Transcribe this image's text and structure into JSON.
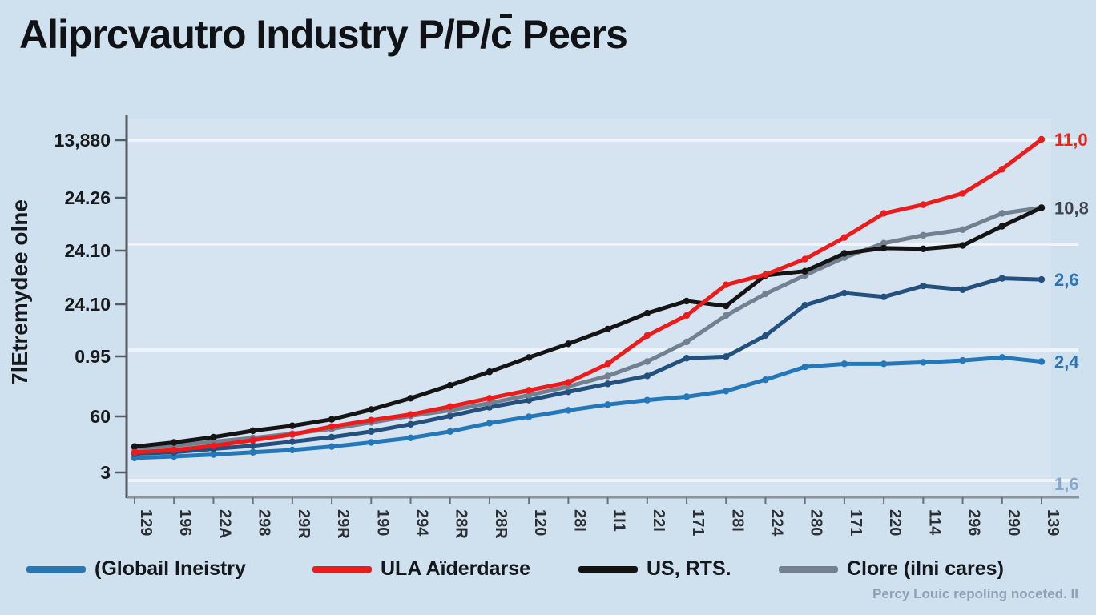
{
  "title": "Aliprcvautro Industry P/P/c̄ Peers",
  "chart_data": {
    "type": "line",
    "title": "Aliprcvautro Industry P/P/c̄ Peers",
    "ylabel": "7lEtremydee olne",
    "xlabel": "",
    "grid": "horizontal-white",
    "legend_position": "bottom",
    "y_tick_labels": [
      "13,880",
      "24.26",
      "24.10",
      "24.10",
      "0.95",
      "60",
      "3"
    ],
    "x_tick_labels": [
      "129",
      "196",
      "22A",
      "298",
      "29R",
      "29R",
      "190",
      "294",
      "28R",
      "28R",
      "120",
      "28I",
      "1I1",
      "22I",
      "171",
      "28I",
      "224",
      "280",
      "171",
      "220",
      "114",
      "296",
      "290",
      "139"
    ],
    "value_note": "Printed axis labels are garbled; series values below are approximate, normalized to 0-100 of plot height (0 = bottom axis, 100 = plot top).",
    "ylim": [
      0,
      100
    ],
    "series": [
      {
        "name": "(Globail Ineistry",
        "color": "#2478b8",
        "end_label": "2,4",
        "values": [
          10.2,
          10.6,
          11.1,
          11.7,
          12.3,
          13.2,
          14.3,
          15.5,
          17.2,
          19.4,
          21.1,
          22.8,
          24.3,
          25.5,
          26.4,
          27.9,
          30.9,
          34.3,
          35.1,
          35.1,
          35.5,
          36.0,
          36.8,
          35.7
        ]
      },
      {
        "name": "(unlabeled navy line)",
        "color": "#24507e",
        "end_label": "2,6",
        "values": [
          11.3,
          11.7,
          12.6,
          13.4,
          14.5,
          15.7,
          17.2,
          19.1,
          21.3,
          23.6,
          25.5,
          27.7,
          29.8,
          31.9,
          36.6,
          37.0,
          42.6,
          50.6,
          53.8,
          52.8,
          55.7,
          54.7,
          57.7,
          57.4
        ]
      },
      {
        "name": "Clore (ilni cares)",
        "color": "#73808f",
        "end_label": "10,8",
        "values": [
          12.8,
          13.4,
          14.5,
          15.5,
          16.6,
          17.9,
          19.6,
          21.3,
          22.8,
          24.7,
          26.8,
          29.1,
          31.9,
          35.7,
          40.9,
          47.9,
          53.6,
          58.5,
          63.2,
          67.0,
          69.1,
          70.6,
          74.9,
          76.4
        ]
      },
      {
        "name": "US, RTS.",
        "color": "#141414",
        "end_label": "10,8",
        "values": [
          13.2,
          14.3,
          15.7,
          17.4,
          18.7,
          20.4,
          23.0,
          26.0,
          29.4,
          33.0,
          36.8,
          40.4,
          44.3,
          48.5,
          51.7,
          50.4,
          58.5,
          59.6,
          64.3,
          65.7,
          65.5,
          66.4,
          71.5,
          76.4
        ]
      },
      {
        "name": "ULA Aïderdarse",
        "color": "#ec1c1c",
        "end_label": "11,0",
        "values": [
          11.7,
          12.3,
          13.4,
          14.9,
          16.4,
          18.5,
          20.2,
          21.7,
          23.8,
          26.0,
          28.1,
          30.2,
          35.1,
          42.6,
          47.9,
          56.0,
          58.7,
          62.8,
          68.5,
          74.9,
          77.2,
          80.2,
          86.6,
          94.5
        ]
      }
    ],
    "end_labels": [
      {
        "text": "11,0",
        "color": "#e8251f",
        "v": 94.5
      },
      {
        "text": "10,8",
        "color": "#3f444b",
        "v": 76.4
      },
      {
        "text": "2,6",
        "color": "#2d74b4",
        "v": 57.4
      },
      {
        "text": "2,4",
        "color": "#2d74b4",
        "v": 35.7
      },
      {
        "text": "1,6",
        "color": "#85a8cc",
        "v": 3.4
      }
    ]
  },
  "legend": {
    "items": [
      {
        "label": "(Globail Ineistry",
        "color": "#2478b8"
      },
      {
        "label": "ULA Aïderdarse",
        "color": "#ec1c1c"
      },
      {
        "label": "US, RTS.",
        "color": "#141414"
      },
      {
        "label": "Clore (ilni cares)",
        "color": "#73808f"
      }
    ]
  },
  "footnote": "Percy Louic repoling noceted. II"
}
